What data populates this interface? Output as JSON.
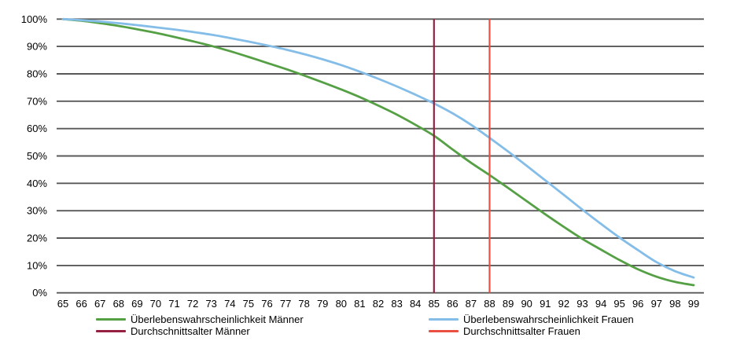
{
  "chart_data": {
    "type": "line",
    "title": "",
    "xlabel": "",
    "ylabel": "",
    "x": [
      65,
      66,
      67,
      68,
      69,
      70,
      71,
      72,
      73,
      74,
      75,
      76,
      77,
      78,
      79,
      80,
      81,
      82,
      83,
      84,
      85,
      86,
      87,
      88,
      89,
      90,
      91,
      92,
      93,
      94,
      95,
      96,
      97,
      98,
      99
    ],
    "x_tick_labels": [
      "65",
      "66",
      "67",
      "68",
      "69",
      "70",
      "71",
      "72",
      "73",
      "74",
      "75",
      "76",
      "77",
      "78",
      "79",
      "80",
      "81",
      "82",
      "83",
      "84",
      "85",
      "86",
      "87",
      "88",
      "89",
      "90",
      "91",
      "92",
      "93",
      "94",
      "95",
      "96",
      "97",
      "98",
      "99"
    ],
    "y_tick_labels": [
      "0%",
      "10%",
      "20%",
      "30%",
      "40%",
      "50%",
      "60%",
      "70%",
      "80%",
      "90%",
      "100%"
    ],
    "y_tick_values": [
      0,
      10,
      20,
      30,
      40,
      50,
      60,
      70,
      80,
      90,
      100
    ],
    "ylim": [
      0,
      100
    ],
    "grid": "horizontal-only",
    "legend_position": "bottom",
    "background_color": "#ffffff",
    "gridline_color": "#595959",
    "text_color": "#000000",
    "series": [
      {
        "name": "Überlebenswahrscheinlichkeit Männer",
        "color": "#55a044",
        "values": [
          100,
          99.4,
          98.5,
          97.5,
          96.3,
          95.0,
          93.5,
          91.9,
          90.2,
          88.3,
          86.2,
          84.0,
          81.8,
          79.4,
          76.9,
          74.3,
          71.5,
          68.4,
          65.1,
          61.4,
          57.4,
          52.4,
          47.5,
          43.0,
          38.3,
          33.5,
          28.7,
          24.1,
          19.7,
          15.8,
          12.0,
          8.6,
          5.9,
          4.0,
          2.8
        ]
      },
      {
        "name": "Überlebenswahrscheinlichkeit Frauen",
        "color": "#84bde8",
        "values": [
          100,
          99.6,
          99.1,
          98.5,
          97.8,
          97.0,
          96.2,
          95.3,
          94.3,
          93.1,
          91.8,
          90.4,
          88.9,
          87.2,
          85.3,
          83.2,
          80.8,
          78.2,
          75.4,
          72.4,
          69.2,
          65.6,
          61.4,
          56.6,
          51.6,
          46.4,
          41.1,
          35.8,
          30.4,
          25.2,
          20.2,
          15.6,
          11.2,
          7.9,
          5.6
        ]
      }
    ],
    "vlines": [
      {
        "name": "Durchschnittsalter Männer",
        "color": "#962041",
        "x": 85
      },
      {
        "name": "Durchschnittsalter Frauen",
        "color": "#e94f43",
        "x": 88
      }
    ],
    "legend": [
      {
        "label": "Überlebenswahrscheinlichkeit Männer",
        "color": "#55a044",
        "kind": "series"
      },
      {
        "label": "Durchschnittsalter Männer",
        "color": "#962041",
        "kind": "vline"
      },
      {
        "label": "Überlebenswahrscheinlichkeit Frauen",
        "color": "#84bde8",
        "kind": "series"
      },
      {
        "label": "Durchschnittsalter Frauen",
        "color": "#e94f43",
        "kind": "vline"
      }
    ]
  }
}
